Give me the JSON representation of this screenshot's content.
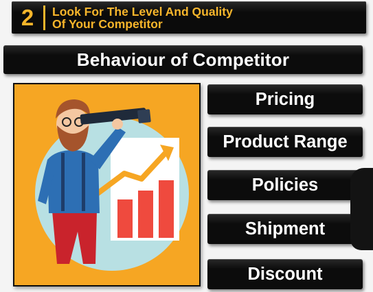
{
  "header": {
    "step_number": "2",
    "line1": "Look For The Level And Quality",
    "line2": "Of Your Competitor"
  },
  "subtitle": "Behaviour of Competitor",
  "items": [
    {
      "label": "Pricing"
    },
    {
      "label": "Product Range"
    },
    {
      "label": "Policies"
    },
    {
      "label": "Shipment"
    },
    {
      "label": "Discount"
    }
  ],
  "colors": {
    "accent": "#f7b52a",
    "bar_background": "#0c0c0c",
    "panel_background": "#f6a623",
    "circle": "#b8e0e3",
    "chart_bars": "#ef4a3e",
    "trend_arrow": "#f6a623"
  }
}
